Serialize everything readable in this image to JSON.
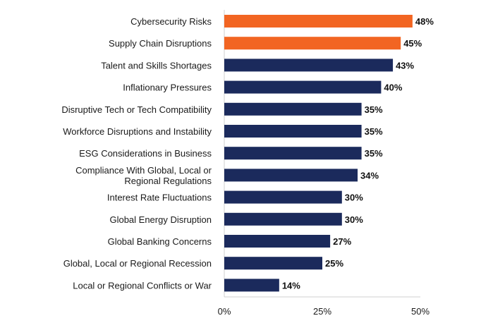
{
  "chart_data": {
    "type": "bar",
    "orientation": "horizontal",
    "categories": [
      "Cybersecurity Risks",
      "Supply Chain Disruptions",
      "Talent and Skills Shortages",
      "Inflationary Pressures",
      "Disruptive Tech or Tech Compatibility",
      "Workforce Disruptions and Instability",
      "ESG Considerations in Business",
      "Compliance With Global, Local or Regional Regulations",
      "Interest Rate Fluctuations",
      "Global Energy Disruption",
      "Global Banking Concerns",
      "Global, Local or Regional Recession",
      "Local or Regional Conflicts or War"
    ],
    "category_lines": [
      [
        "Cybersecurity Risks"
      ],
      [
        "Supply Chain Disruptions"
      ],
      [
        "Talent and Skills Shortages"
      ],
      [
        "Inflationary Pressures"
      ],
      [
        "Disruptive Tech or Tech Compatibility"
      ],
      [
        "Workforce Disruptions and Instability"
      ],
      [
        "ESG Considerations in Business"
      ],
      [
        "Compliance With Global, Local or",
        "Regional Regulations"
      ],
      [
        "Interest Rate Fluctuations"
      ],
      [
        "Global Energy Disruption"
      ],
      [
        "Global Banking Concerns"
      ],
      [
        "Global, Local or Regional Recession"
      ],
      [
        "Local or Regional Conflicts or War"
      ]
    ],
    "values": [
      48,
      45,
      43,
      40,
      35,
      35,
      35,
      34,
      30,
      30,
      27,
      25,
      14
    ],
    "value_labels": [
      "48%",
      "45%",
      "43%",
      "40%",
      "35%",
      "35%",
      "35%",
      "34%",
      "30%",
      "30%",
      "27%",
      "25%",
      "14%"
    ],
    "highlight": [
      true,
      true,
      false,
      false,
      false,
      false,
      false,
      false,
      false,
      false,
      false,
      false,
      false
    ],
    "colors": {
      "highlight": "#f26522",
      "default": "#1b2a5c"
    },
    "xlim": [
      0,
      50
    ],
    "ticks": [
      0,
      25,
      50
    ],
    "tick_labels": [
      "0%",
      "25%",
      "50%"
    ],
    "grid": false,
    "legend": "none"
  }
}
